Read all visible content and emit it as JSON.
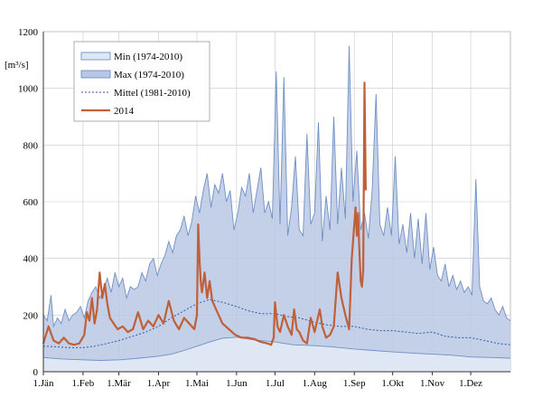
{
  "chart_data": {
    "type": "area",
    "y_unit_label": "[m³/s]",
    "ylim": [
      0,
      1200
    ],
    "y_ticks": [
      0,
      200,
      400,
      600,
      800,
      1000,
      1200
    ],
    "x_range_days": [
      0,
      365
    ],
    "x_ticks": [
      {
        "day": 0,
        "label": "1.Jän"
      },
      {
        "day": 31,
        "label": "1.Feb"
      },
      {
        "day": 59,
        "label": "1.Mär"
      },
      {
        "day": 90,
        "label": "1.Apr"
      },
      {
        "day": 120,
        "label": "1.Mai"
      },
      {
        "day": 151,
        "label": "1.Jun"
      },
      {
        "day": 181,
        "label": "1.Jul"
      },
      {
        "day": 212,
        "label": "1.Aug"
      },
      {
        "day": 243,
        "label": "1.Sep"
      },
      {
        "day": 273,
        "label": "1.Okt"
      },
      {
        "day": 304,
        "label": "1.Nov"
      },
      {
        "day": 334,
        "label": "1.Dez"
      }
    ],
    "grid": true,
    "legend_position": "top-left",
    "legend": [
      {
        "key": "min",
        "label": "Min (1974-2010)"
      },
      {
        "key": "max",
        "label": "Max (1974-2010)"
      },
      {
        "key": "mean",
        "label": "Mittel (1981-2010)"
      },
      {
        "key": "y2014",
        "label": "2014"
      }
    ],
    "colors": {
      "band_fill": "#b8c8e4",
      "band_stroke": "#6f8fc4",
      "mean_line": "#2f5aa8",
      "line_2014": "#c0603a",
      "grid": "#c8c8c8"
    },
    "series": {
      "min": {
        "x": [
          0,
          15,
          30,
          45,
          60,
          75,
          90,
          100,
          110,
          120,
          130,
          140,
          151,
          165,
          181,
          195,
          212,
          225,
          243,
          258,
          273,
          290,
          304,
          320,
          334,
          350,
          365
        ],
        "y": [
          50,
          45,
          42,
          40,
          42,
          48,
          55,
          62,
          75,
          90,
          105,
          118,
          122,
          112,
          105,
          95,
          92,
          88,
          80,
          75,
          70,
          65,
          62,
          58,
          52,
          50,
          48
        ]
      },
      "max": {
        "x": [
          0,
          3,
          6,
          8,
          11,
          14,
          17,
          20,
          23,
          26,
          29,
          32,
          35,
          38,
          41,
          44,
          47,
          50,
          53,
          56,
          59,
          62,
          65,
          68,
          71,
          74,
          77,
          80,
          83,
          86,
          89,
          92,
          95,
          98,
          101,
          104,
          107,
          110,
          113,
          116,
          119,
          122,
          125,
          128,
          131,
          134,
          137,
          140,
          143,
          146,
          149,
          152,
          155,
          158,
          161,
          164,
          167,
          170,
          173,
          176,
          179,
          182,
          185,
          188,
          191,
          194,
          197,
          200,
          203,
          206,
          209,
          212,
          215,
          218,
          221,
          224,
          227,
          230,
          233,
          236,
          239,
          242,
          245,
          248,
          251,
          254,
          257,
          260,
          263,
          266,
          269,
          272,
          275,
          278,
          281,
          284,
          287,
          290,
          293,
          296,
          299,
          302,
          305,
          308,
          311,
          314,
          317,
          320,
          323,
          326,
          329,
          332,
          335,
          338,
          341,
          344,
          347,
          350,
          353,
          356,
          359,
          362,
          365
        ],
        "y": [
          200,
          180,
          270,
          160,
          190,
          170,
          220,
          180,
          200,
          210,
          230,
          190,
          250,
          280,
          300,
          260,
          290,
          330,
          280,
          350,
          300,
          330,
          260,
          300,
          290,
          300,
          350,
          320,
          380,
          400,
          340,
          380,
          410,
          460,
          420,
          480,
          500,
          550,
          480,
          530,
          620,
          560,
          640,
          700,
          580,
          660,
          630,
          700,
          600,
          640,
          500,
          560,
          650,
          620,
          700,
          560,
          640,
          720,
          560,
          600,
          540,
          1060,
          520,
          1040,
          480,
          580,
          760,
          500,
          480,
          840,
          520,
          560,
          880,
          460,
          620,
          500,
          900,
          520,
          720,
          540,
          1150,
          600,
          780,
          500,
          560,
          470,
          640,
          980,
          520,
          480,
          580,
          480,
          760,
          450,
          520,
          420,
          560,
          400,
          540,
          380,
          560,
          360,
          440,
          340,
          320,
          380,
          300,
          340,
          290,
          320,
          280,
          300,
          270,
          680,
          300,
          250,
          240,
          260,
          220,
          200,
          230,
          190,
          180
        ]
      },
      "mean": {
        "x": [
          0,
          10,
          20,
          31,
          40,
          50,
          59,
          70,
          80,
          90,
          100,
          110,
          120,
          130,
          140,
          151,
          160,
          170,
          181,
          190,
          200,
          212,
          222,
          232,
          243,
          253,
          263,
          273,
          283,
          293,
          304,
          314,
          324,
          334,
          345,
          355,
          365
        ],
        "y": [
          90,
          88,
          85,
          85,
          90,
          100,
          110,
          125,
          140,
          160,
          190,
          215,
          240,
          255,
          245,
          230,
          215,
          205,
          205,
          195,
          190,
          175,
          165,
          160,
          160,
          150,
          145,
          145,
          140,
          135,
          140,
          125,
          120,
          120,
          110,
          100,
          95
        ]
      },
      "y2014": {
        "x": [
          0,
          4,
          8,
          12,
          16,
          20,
          24,
          28,
          32,
          34,
          36,
          38,
          40,
          42,
          44,
          46,
          48,
          50,
          52,
          55,
          58,
          62,
          66,
          70,
          74,
          78,
          82,
          86,
          90,
          94,
          98,
          102,
          106,
          110,
          114,
          118,
          120,
          121,
          122,
          123,
          124,
          126,
          128,
          130,
          132,
          135,
          140,
          145,
          150,
          155,
          160,
          165,
          170,
          175,
          178,
          180,
          181,
          183,
          185,
          188,
          191,
          194,
          196,
          198,
          200,
          203,
          206,
          209,
          212,
          214,
          216,
          218,
          221,
          224,
          227,
          230,
          233,
          236,
          239,
          241,
          243,
          244,
          245,
          246,
          247,
          248,
          249,
          250,
          251,
          252
        ],
        "y": [
          100,
          160,
          110,
          100,
          120,
          100,
          95,
          100,
          130,
          210,
          180,
          260,
          170,
          220,
          350,
          260,
          310,
          240,
          190,
          170,
          150,
          160,
          140,
          150,
          210,
          150,
          180,
          160,
          200,
          170,
          250,
          180,
          150,
          190,
          170,
          150,
          200,
          520,
          400,
          320,
          280,
          350,
          260,
          320,
          250,
          220,
          170,
          150,
          130,
          120,
          120,
          115,
          105,
          100,
          95,
          120,
          245,
          160,
          140,
          200,
          160,
          130,
          220,
          150,
          140,
          110,
          100,
          190,
          140,
          180,
          220,
          160,
          120,
          130,
          160,
          350,
          260,
          200,
          150,
          400,
          520,
          580,
          480,
          560,
          420,
          320,
          300,
          360,
          1020,
          640
        ]
      }
    }
  }
}
